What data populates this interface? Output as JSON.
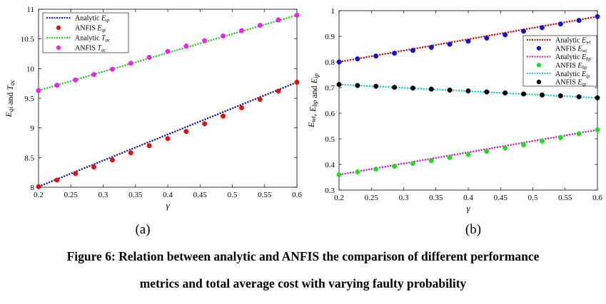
{
  "chart_data": [
    {
      "type": "line",
      "panel": "(a)",
      "xlabel": "γ",
      "ylabel": "E_qi and T_ac",
      "xlim": [
        0.2,
        0.6
      ],
      "ylim": [
        8,
        11
      ],
      "xticks": [
        0.2,
        0.25,
        0.3,
        0.35,
        0.4,
        0.45,
        0.5,
        0.55,
        0.6
      ],
      "yticks": [
        8,
        8.5,
        9,
        9.5,
        10,
        10.5,
        11
      ],
      "xtick_labels": [
        "0.2",
        "0.25",
        "0.3",
        "0.35",
        "0.4",
        "0.45",
        "0.5",
        "0.55",
        "0.6"
      ],
      "ytick_labels": [
        "8",
        "8.5",
        "9",
        "9.5",
        "10",
        "10.5",
        "11"
      ],
      "legend_position": "top-left",
      "series": [
        {
          "name": "Analytic E_qi",
          "kind": "line",
          "color": "#1f1fa8",
          "dash": "dotted",
          "x": [
            0.2,
            0.6
          ],
          "y": [
            8.01,
            9.77
          ]
        },
        {
          "name": "ANFIS E_qi",
          "kind": "scatter",
          "color": "#e01010",
          "x": [
            0.2,
            0.2286,
            0.2571,
            0.2857,
            0.3143,
            0.3429,
            0.3714,
            0.4,
            0.4286,
            0.4571,
            0.4857,
            0.5143,
            0.5429,
            0.5714,
            0.6
          ],
          "y": [
            8.01,
            8.12,
            8.23,
            8.34,
            8.46,
            8.58,
            8.7,
            8.82,
            8.94,
            9.07,
            9.2,
            9.34,
            9.48,
            9.62,
            9.77
          ]
        },
        {
          "name": "Analytic T_ac",
          "kind": "line",
          "color": "#33cc33",
          "dash": "dotted",
          "x": [
            0.2,
            0.6
          ],
          "y": [
            9.63,
            10.9
          ]
        },
        {
          "name": "ANFIS T_ac",
          "kind": "scatter",
          "color": "#ee22ee",
          "x": [
            0.2,
            0.2286,
            0.2571,
            0.2857,
            0.3143,
            0.3429,
            0.3714,
            0.4,
            0.4286,
            0.4571,
            0.4857,
            0.5143,
            0.5429,
            0.5714,
            0.6
          ],
          "y": [
            9.63,
            9.72,
            9.81,
            9.9,
            9.99,
            10.09,
            10.19,
            10.29,
            10.38,
            10.47,
            10.55,
            10.64,
            10.73,
            10.82,
            10.9
          ]
        }
      ]
    },
    {
      "type": "line",
      "panel": "(b)",
      "xlabel": "γ",
      "ylabel": "E_wt, E_bp and E_ip",
      "xlim": [
        0.2,
        0.6
      ],
      "ylim": [
        0.3,
        1.0
      ],
      "xticks": [
        0.2,
        0.25,
        0.3,
        0.35,
        0.4,
        0.45,
        0.5,
        0.55,
        0.6
      ],
      "yticks": [
        0.3,
        0.4,
        0.5,
        0.6,
        0.7,
        0.8,
        0.9,
        1.0
      ],
      "xtick_labels": [
        "0.2",
        "0.25",
        "0.3",
        "0.35",
        "0.4",
        "0.45",
        "0.5",
        "0.55",
        "0.6"
      ],
      "ytick_labels": [
        "0.3",
        "0.4",
        "0.5",
        "0.6",
        "0.7",
        "0.8",
        "0.9",
        "1"
      ],
      "legend_position": "top-right",
      "series": [
        {
          "name": "Analytic E_wt",
          "kind": "line",
          "color": "#cc1111",
          "dash": "dotted",
          "x": [
            0.2,
            0.6
          ],
          "y": [
            0.8,
            0.977
          ]
        },
        {
          "name": "ANFIS E_wt",
          "kind": "scatter",
          "color": "#1111cc",
          "x": [
            0.2,
            0.2286,
            0.2571,
            0.2857,
            0.3143,
            0.3429,
            0.3714,
            0.4,
            0.4286,
            0.4571,
            0.4857,
            0.5143,
            0.5429,
            0.5714,
            0.6
          ],
          "y": [
            0.8,
            0.812,
            0.823,
            0.834,
            0.845,
            0.857,
            0.869,
            0.881,
            0.893,
            0.906,
            0.92,
            0.934,
            0.948,
            0.962,
            0.977
          ]
        },
        {
          "name": "Analytic E_bp",
          "kind": "line",
          "color": "#cc22cc",
          "dash": "dotted",
          "x": [
            0.2,
            0.6
          ],
          "y": [
            0.36,
            0.535
          ]
        },
        {
          "name": "ANFIS E_bp",
          "kind": "scatter",
          "color": "#22dd22",
          "x": [
            0.2,
            0.2286,
            0.2571,
            0.2857,
            0.3143,
            0.3429,
            0.3714,
            0.4,
            0.4286,
            0.4571,
            0.4857,
            0.5143,
            0.5429,
            0.5714,
            0.6
          ],
          "y": [
            0.36,
            0.371,
            0.382,
            0.393,
            0.404,
            0.415,
            0.427,
            0.439,
            0.451,
            0.464,
            0.477,
            0.491,
            0.505,
            0.52,
            0.535
          ]
        },
        {
          "name": "Analytic E_ip",
          "kind": "line",
          "color": "#22cccc",
          "dash": "dotted",
          "x": [
            0.2,
            0.6
          ],
          "y": [
            0.712,
            0.66
          ]
        },
        {
          "name": "ANFIS E_ip",
          "kind": "scatter",
          "color": "#000000",
          "x": [
            0.2,
            0.2286,
            0.2571,
            0.2857,
            0.3143,
            0.3429,
            0.3714,
            0.4,
            0.4286,
            0.4571,
            0.4857,
            0.5143,
            0.5429,
            0.5714,
            0.6
          ],
          "y": [
            0.712,
            0.708,
            0.705,
            0.701,
            0.698,
            0.694,
            0.69,
            0.687,
            0.683,
            0.679,
            0.675,
            0.671,
            0.668,
            0.664,
            0.66
          ]
        }
      ]
    }
  ],
  "panels": {
    "a": "(a)",
    "b": "(b)"
  },
  "caption": {
    "line1": "Figure 6: Relation between analytic and ANFIS the comparison of different performance",
    "line2": "metrics and total average cost with varying faulty probability"
  }
}
